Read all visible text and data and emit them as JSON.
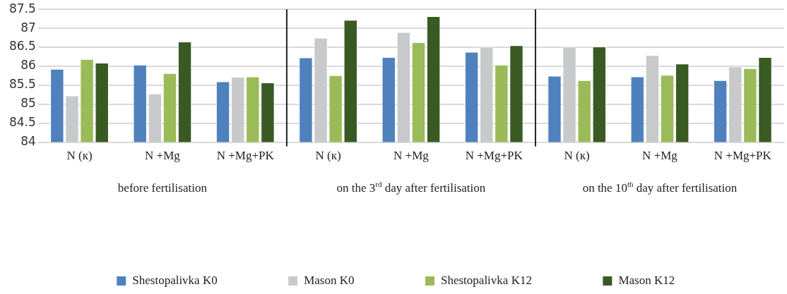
{
  "chart_data": {
    "type": "bar",
    "categories": [
      "N (к)",
      "N +Mg",
      "N +Mg+PK",
      "N (к)",
      "N +Mg",
      "N +Mg+PK",
      "N (к)",
      "N +Mg",
      "N +Mg+PK"
    ],
    "series": [
      {
        "name": "Shestopalivka K0",
        "color": "#4f81bd",
        "values": [
          85.93,
          86.04,
          85.6,
          86.23,
          86.24,
          86.38,
          85.75,
          85.73,
          85.63
        ]
      },
      {
        "name": "Mason K0",
        "color": "#c8c9cb",
        "values": [
          85.23,
          85.28,
          85.72,
          86.75,
          86.9,
          86.51,
          86.51,
          86.29,
          85.99
        ]
      },
      {
        "name": "Shestopalivka K12",
        "color": "#9bbb59",
        "values": [
          86.19,
          85.82,
          85.73,
          85.76,
          86.63,
          86.04,
          85.63,
          85.77,
          85.95
        ]
      },
      {
        "name": "Mason K12",
        "color": "#3a5a24",
        "values": [
          86.09,
          86.65,
          85.57,
          87.22,
          87.32,
          86.55,
          86.52,
          86.07,
          86.24
        ]
      }
    ],
    "ylim": [
      84,
      87.5
    ],
    "yticks": [
      84,
      84.5,
      85,
      85.5,
      86,
      86.5,
      87,
      87.5
    ],
    "grid": "y",
    "legend": "bottom",
    "annotations": [
      "before fertilisation",
      "on the 3$^{rd}$ day after fertilisation",
      "on the 10$^{th}$ day after fertilisation"
    ]
  }
}
